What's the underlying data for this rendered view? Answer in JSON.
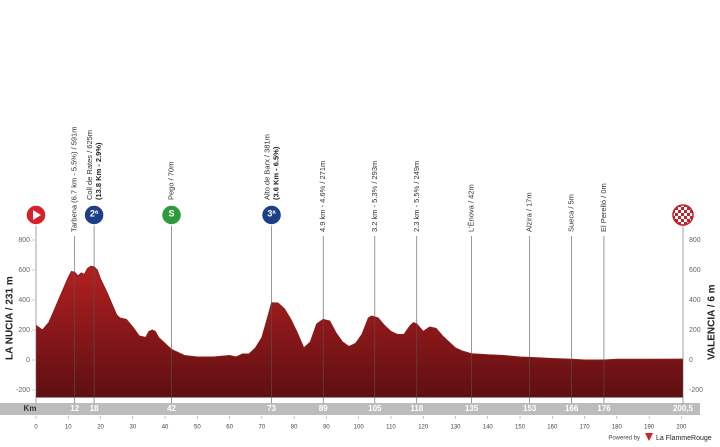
{
  "chart_data": {
    "type": "area",
    "xlabel": "Km",
    "start_label": "LA NUCIA / 231 m",
    "finish_label": "VALENCIA / 6 m",
    "color": "#8e1b1b",
    "x": [
      0,
      2,
      4,
      6,
      8,
      10,
      11,
      12,
      13,
      14,
      15,
      16,
      17,
      18,
      19,
      20,
      22,
      24,
      25,
      26,
      28,
      30,
      32,
      34,
      35,
      36,
      37,
      38,
      40,
      42,
      44,
      46,
      50,
      55,
      60,
      62,
      64,
      66,
      68,
      70,
      72,
      73,
      75,
      77,
      79,
      81,
      83,
      85,
      87,
      89,
      91,
      93,
      95,
      97,
      99,
      101,
      103,
      104,
      106,
      108,
      110,
      112,
      114,
      116,
      117,
      118,
      120,
      122,
      124,
      126,
      128,
      130,
      132,
      135,
      140,
      145,
      150,
      153,
      160,
      166,
      170,
      176,
      180,
      190,
      200.5
    ],
    "values": [
      231,
      200,
      250,
      350,
      450,
      550,
      590,
      585,
      560,
      580,
      570,
      610,
      625,
      620,
      600,
      540,
      450,
      350,
      300,
      280,
      270,
      220,
      160,
      150,
      190,
      200,
      190,
      150,
      110,
      70,
      50,
      30,
      20,
      20,
      30,
      20,
      40,
      40,
      80,
      150,
      300,
      381,
      380,
      340,
      270,
      180,
      80,
      120,
      240,
      271,
      260,
      180,
      120,
      90,
      110,
      170,
      280,
      293,
      280,
      230,
      190,
      170,
      170,
      230,
      249,
      240,
      190,
      220,
      210,
      160,
      120,
      80,
      60,
      42,
      35,
      30,
      20,
      17,
      10,
      5,
      0,
      0,
      5,
      5,
      6
    ],
    "xlim": [
      0,
      200.5
    ],
    "ylim": [
      -250,
      850
    ],
    "xticks": [
      0,
      10,
      20,
      30,
      40,
      50,
      60,
      70,
      80,
      90,
      100,
      110,
      120,
      130,
      140,
      150,
      160,
      170,
      180,
      190,
      200
    ],
    "yticks": [
      -200,
      0,
      200,
      400,
      600,
      800
    ],
    "start_icon": "start",
    "points": [
      {
        "km": 12,
        "label": "Tarbena (6.7 km - 5.5%) / 591m"
      },
      {
        "km": 18,
        "label": "Coll de Rates / 625m",
        "detail": "(13.8 Km - 2.9%)",
        "icon": "2ª",
        "icon_color": "#1d3f8a"
      },
      {
        "km": 42,
        "label": "Pego / 70m",
        "icon": "S",
        "icon_color": "#2e9a3e"
      },
      {
        "km": 73,
        "label": "Alto de Barx / 381m",
        "detail": "(3.6 Km - 6.5%)",
        "icon": "3ª",
        "icon_color": "#1d3f8a"
      },
      {
        "km": 89,
        "label": "4.9 km - 4.6% / 271m"
      },
      {
        "km": 105,
        "label": "3.2 km - 5.3% / 293m"
      },
      {
        "km": 118,
        "label": "2.3 km - 5.5% / 249m"
      },
      {
        "km": 135,
        "label": "L'Ènova / 42m"
      },
      {
        "km": 153,
        "label": "Alzira / 17m"
      },
      {
        "km": 166,
        "label": "Sueca / 5m"
      },
      {
        "km": 176,
        "label": "El Perelló / 0m"
      }
    ],
    "finish_km": {
      "value": 200.5,
      "label": "200,5"
    }
  },
  "footer": {
    "powered": "Powered by",
    "brand": "La FlammeRouge"
  }
}
